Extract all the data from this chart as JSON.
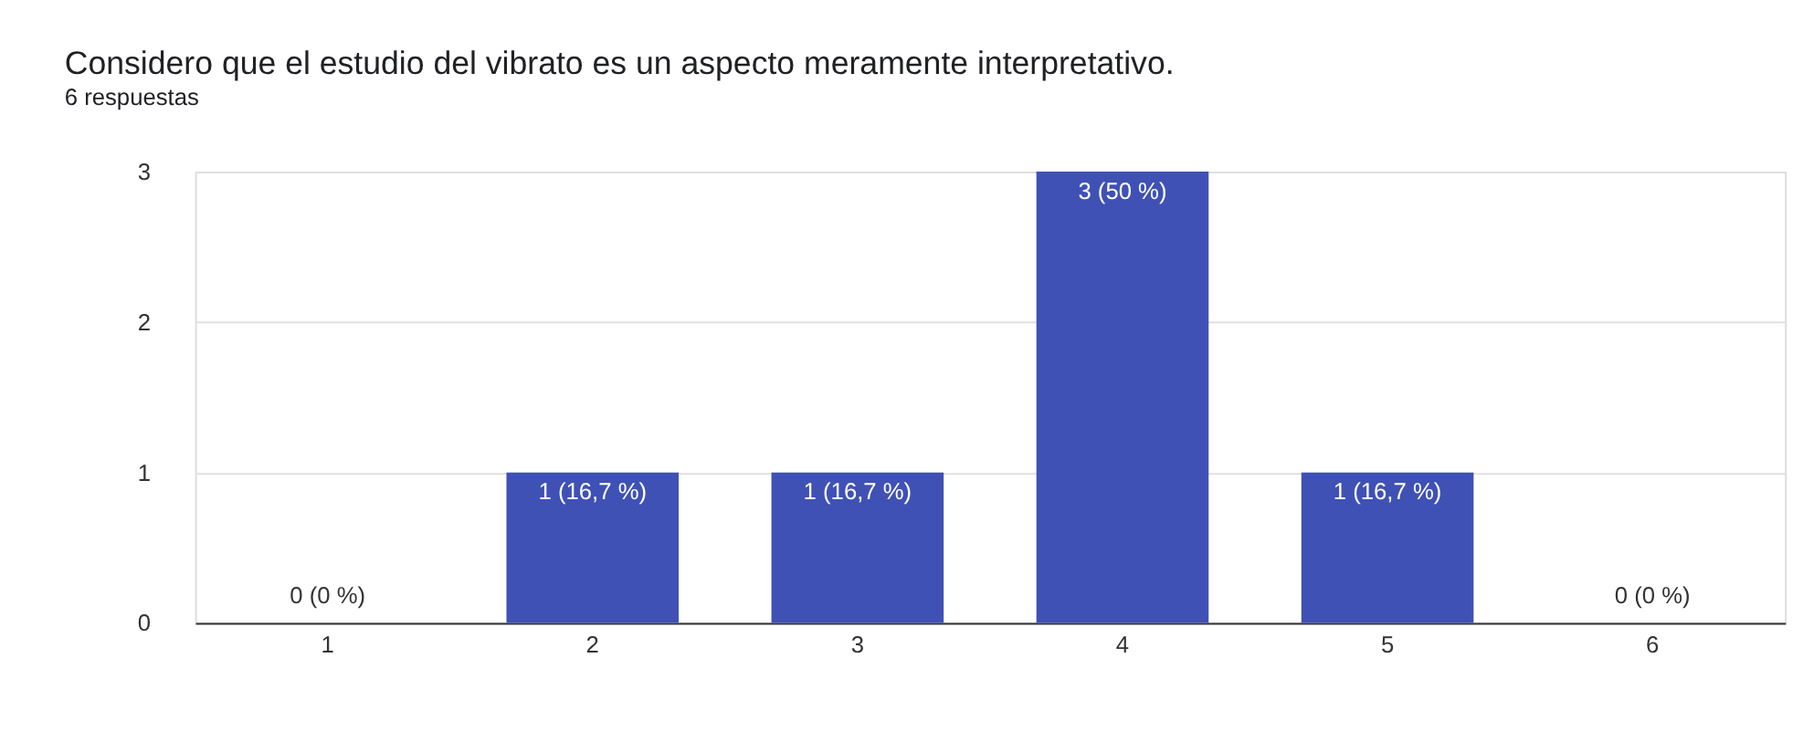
{
  "chart_data": {
    "type": "bar",
    "title": "Considero que el estudio del vibrato es un aspecto meramente interpretativo.",
    "subtitle": "6 respuestas",
    "categories": [
      "1",
      "2",
      "3",
      "4",
      "5",
      "6"
    ],
    "values": [
      0,
      1,
      1,
      3,
      1,
      0
    ],
    "color": "#3f51b5",
    "value_labels": [
      "0 (0 %)",
      "1 (16,7 %)",
      "1 (16,7 %)",
      "3 (50 %)",
      "1 (16,7 %)",
      "0 (0 %)"
    ],
    "ylim": [
      0,
      3
    ],
    "yticks": [
      0,
      1,
      2,
      3
    ],
    "grid": "y"
  }
}
